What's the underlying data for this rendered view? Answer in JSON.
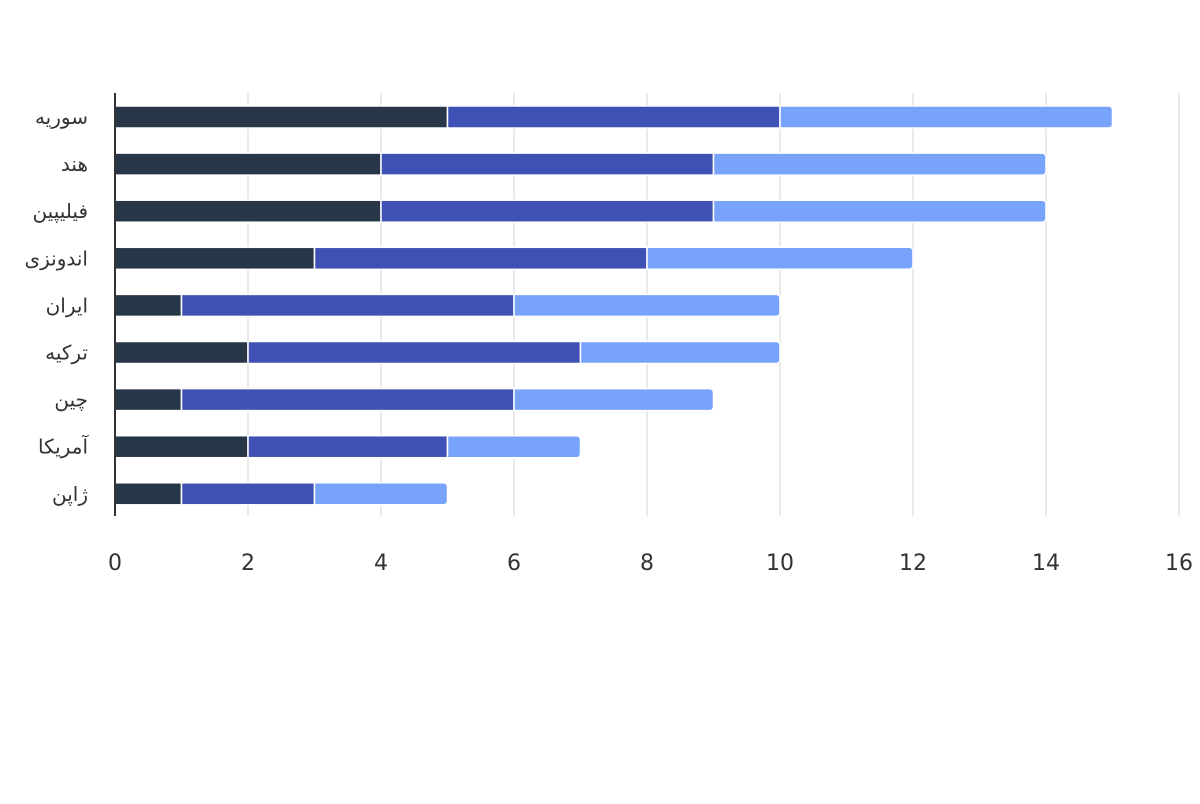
{
  "chart_data": {
    "type": "bar",
    "orientation": "horizontal",
    "stacked": true,
    "categories": [
      "سوریه",
      "هند",
      "فیلیپین",
      "اندونزی",
      "ایران",
      "ترکیه",
      "چین",
      "آمریکا",
      "ژاپن"
    ],
    "series": [
      {
        "values": [
          5,
          4,
          4,
          3,
          1,
          2,
          1,
          2,
          1
        ],
        "color": "#283747"
      },
      {
        "values": [
          5,
          5,
          5,
          5,
          5,
          5,
          5,
          3,
          2
        ],
        "color": "#3F51B5"
      },
      {
        "values": [
          5,
          5,
          5,
          4,
          4,
          3,
          3,
          2,
          2
        ],
        "color": "#78A3FA"
      }
    ],
    "xlim": [
      0,
      16
    ],
    "xticks": [
      "0",
      "2",
      "4",
      "6",
      "8",
      "10",
      "12",
      "14",
      "16"
    ],
    "grid": true,
    "legend": false
  }
}
